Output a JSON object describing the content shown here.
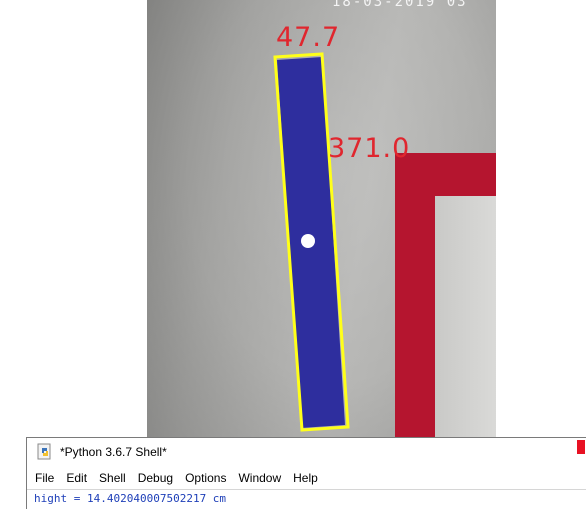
{
  "camera": {
    "timestamp": "18-03-2019 03",
    "object_color": "#2e2e9e",
    "outline_color": "#ffff1a",
    "label_color": "#e0262e",
    "labels": {
      "width": "47.7",
      "length": "371.0"
    }
  },
  "shell": {
    "title": "*Python 3.6.7 Shell*",
    "icon": "python-idle-icon",
    "menu": [
      "File",
      "Edit",
      "Shell",
      "Debug",
      "Options",
      "Window",
      "Help"
    ],
    "output": "hight = 14.402040007502217 cm"
  }
}
